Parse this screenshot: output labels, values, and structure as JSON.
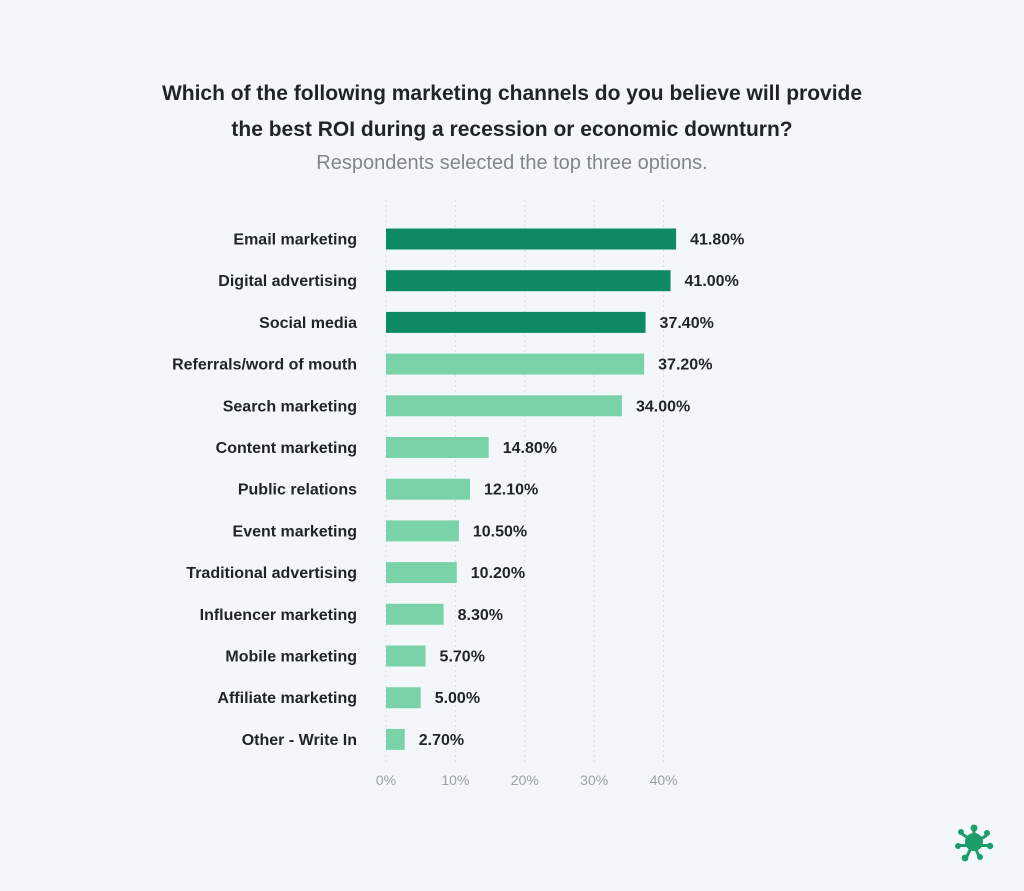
{
  "header": {
    "title_line1": "Which of the following marketing channels do you believe will provide",
    "title_line2": "the best ROI during a recession or economic downturn?",
    "subtitle": "Respondents selected the top three options."
  },
  "colors": {
    "top3_bar": "#0e8a63",
    "other_bar": "#7ad3a8",
    "logo": "#1a9e6c"
  },
  "chart_data": {
    "type": "bar",
    "orientation": "horizontal",
    "categories": [
      "Email marketing",
      "Digital advertising",
      "Social media",
      "Referrals/word of mouth",
      "Search marketing",
      "Content marketing",
      "Public relations",
      "Event marketing",
      "Traditional advertising",
      "Influencer marketing",
      "Mobile marketing",
      "Affiliate marketing",
      "Other - Write In"
    ],
    "values": [
      41.8,
      41.0,
      37.4,
      37.2,
      34.0,
      14.8,
      12.1,
      10.5,
      10.2,
      8.3,
      5.7,
      5.0,
      2.7
    ],
    "value_labels": [
      "41.80%",
      "41.00%",
      "37.40%",
      "37.20%",
      "34.00%",
      "14.80%",
      "12.10%",
      "10.50%",
      "10.20%",
      "8.30%",
      "5.70%",
      "5.00%",
      "2.70%"
    ],
    "highlighted_top": 3,
    "x_ticks": [
      0,
      10,
      20,
      30,
      40
    ],
    "x_tick_labels": [
      "0%",
      "10%",
      "20%",
      "30%",
      "40%"
    ],
    "xlim": [
      0,
      45
    ],
    "grid": "vertical dashed"
  }
}
